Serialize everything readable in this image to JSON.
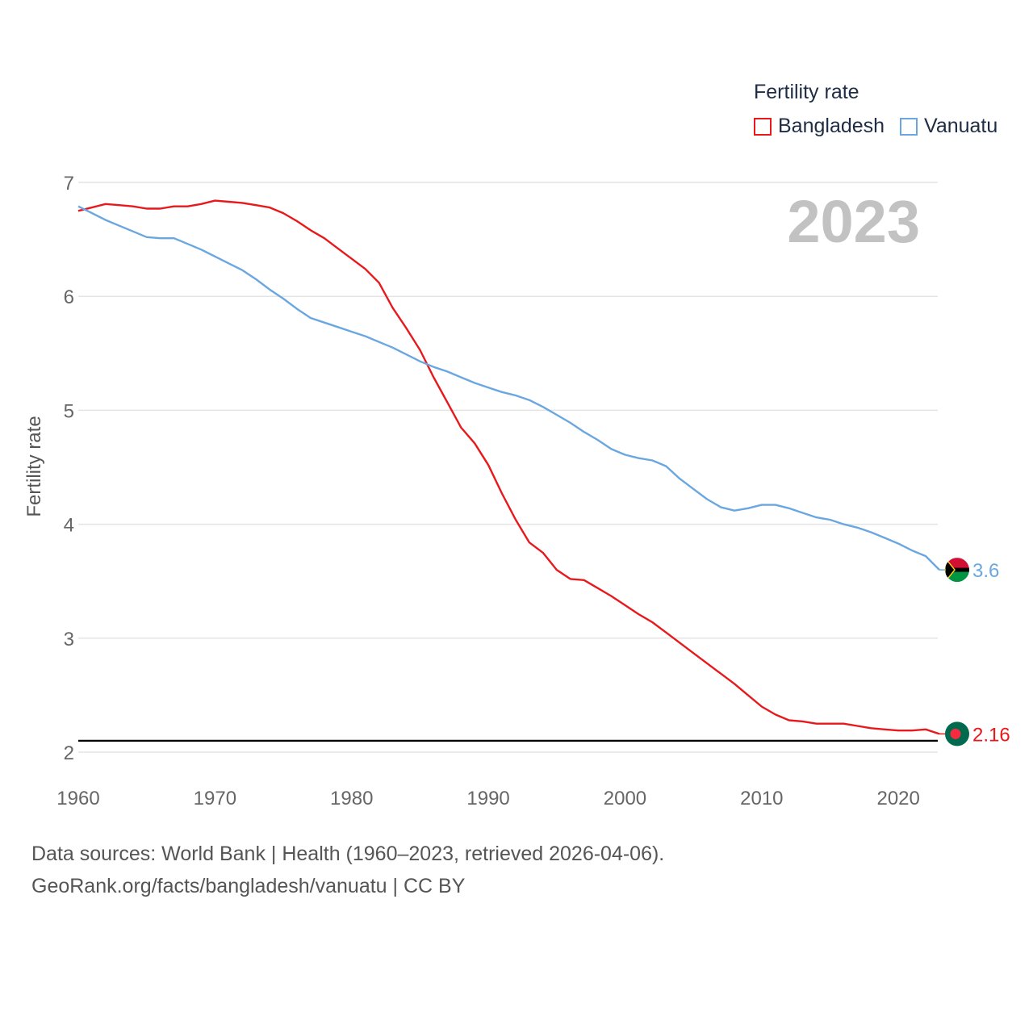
{
  "legend": {
    "title": "Fertility rate",
    "items": [
      {
        "label": "Bangladesh",
        "color": "#e8191d"
      },
      {
        "label": "Vanuatu",
        "color": "#6aa7e1"
      }
    ]
  },
  "year_watermark": "2023",
  "footer": {
    "line1": "Data sources: World Bank | Health (1960–2023, retrieved 2026-04-06).",
    "line2": "GeoRank.org/facts/bangladesh/vanuatu | CC BY"
  },
  "chart_data": {
    "type": "line",
    "title": "Fertility rate",
    "xlabel": "",
    "ylabel": "Fertility rate",
    "xlim": [
      1960,
      2023
    ],
    "ylim": [
      2,
      7
    ],
    "x_ticks": [
      1960,
      1970,
      1980,
      1990,
      2000,
      2010,
      2020
    ],
    "y_ticks": [
      2,
      3,
      4,
      5,
      6,
      7
    ],
    "reference_line": 2.1,
    "x": [
      1960,
      1961,
      1962,
      1963,
      1964,
      1965,
      1966,
      1967,
      1968,
      1969,
      1970,
      1971,
      1972,
      1973,
      1974,
      1975,
      1976,
      1977,
      1978,
      1979,
      1980,
      1981,
      1982,
      1983,
      1984,
      1985,
      1986,
      1987,
      1988,
      1989,
      1990,
      1991,
      1992,
      1993,
      1994,
      1995,
      1996,
      1997,
      1998,
      1999,
      2000,
      2001,
      2002,
      2003,
      2004,
      2005,
      2006,
      2007,
      2008,
      2009,
      2010,
      2011,
      2012,
      2013,
      2014,
      2015,
      2016,
      2017,
      2018,
      2019,
      2020,
      2021,
      2022,
      2023
    ],
    "series": [
      {
        "name": "Bangladesh",
        "color": "#e8191d",
        "end_label": "2.16",
        "values": [
          6.75,
          6.78,
          6.81,
          6.8,
          6.79,
          6.77,
          6.77,
          6.79,
          6.79,
          6.81,
          6.84,
          6.83,
          6.82,
          6.8,
          6.78,
          6.73,
          6.66,
          6.58,
          6.51,
          6.42,
          6.33,
          6.24,
          6.12,
          5.9,
          5.72,
          5.53,
          5.29,
          5.07,
          4.85,
          4.71,
          4.52,
          4.27,
          4.04,
          3.84,
          3.75,
          3.6,
          3.52,
          3.51,
          3.44,
          3.37,
          3.29,
          3.21,
          3.14,
          3.05,
          2.96,
          2.87,
          2.78,
          2.69,
          2.6,
          2.5,
          2.4,
          2.33,
          2.28,
          2.27,
          2.25,
          2.25,
          2.25,
          2.23,
          2.21,
          2.2,
          2.19,
          2.19,
          2.2,
          2.16
        ]
      },
      {
        "name": "Vanuatu",
        "color": "#6aa7e1",
        "end_label": "3.6",
        "values": [
          6.79,
          6.73,
          6.67,
          6.62,
          6.57,
          6.52,
          6.51,
          6.51,
          6.46,
          6.41,
          6.35,
          6.29,
          6.23,
          6.15,
          6.06,
          5.98,
          5.89,
          5.81,
          5.77,
          5.73,
          5.69,
          5.65,
          5.6,
          5.55,
          5.49,
          5.43,
          5.38,
          5.34,
          5.29,
          5.24,
          5.2,
          5.16,
          5.13,
          5.09,
          5.03,
          4.96,
          4.89,
          4.81,
          4.74,
          4.66,
          4.61,
          4.58,
          4.56,
          4.51,
          4.4,
          4.31,
          4.22,
          4.15,
          4.12,
          4.14,
          4.17,
          4.17,
          4.14,
          4.1,
          4.06,
          4.04,
          4.0,
          3.97,
          3.93,
          3.88,
          3.83,
          3.77,
          3.72,
          3.6
        ]
      }
    ]
  }
}
